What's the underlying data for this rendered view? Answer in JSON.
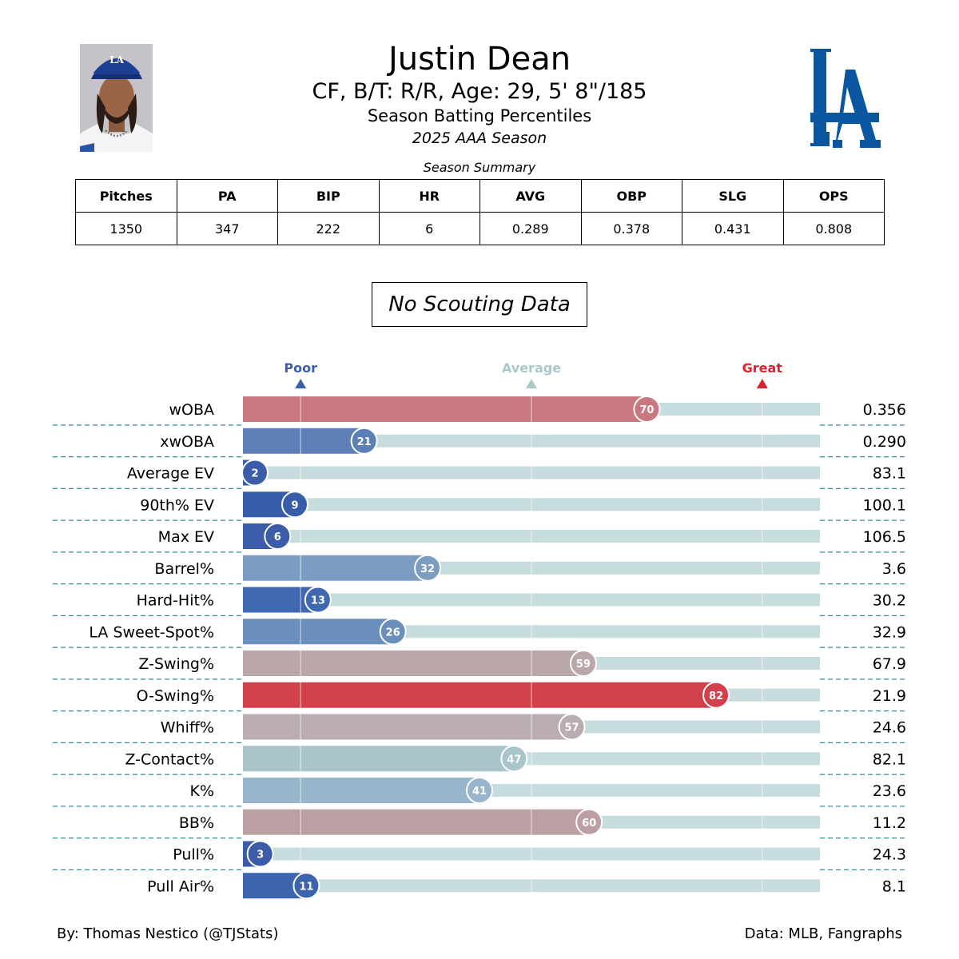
{
  "header": {
    "player_name": "Justin Dean",
    "player_info": "CF, B/T: R/R, Age: 29, 5' 8\"/185",
    "report_title": "Season Batting Percentiles",
    "season": "2025 AAA Season",
    "logo_text": "LA",
    "cap_logo_text": "LA"
  },
  "summary": {
    "caption": "Season Summary",
    "headers": [
      "Pitches",
      "PA",
      "BIP",
      "HR",
      "AVG",
      "OBP",
      "SLG",
      "OPS"
    ],
    "values": [
      "1350",
      "347",
      "222",
      "6",
      "0.289",
      "0.378",
      "0.431",
      "0.808"
    ]
  },
  "scouting": {
    "label": "No Scouting Data"
  },
  "chart_data": {
    "type": "bar",
    "title": "Season Batting Percentiles",
    "orientation": "horizontal",
    "xlim": [
      0,
      100
    ],
    "markers": [
      {
        "label": "Poor",
        "value": 10,
        "color": "#3a5fa8"
      },
      {
        "label": "Average",
        "value": 50,
        "color": "#a9c8cc"
      },
      {
        "label": "Great",
        "value": 90,
        "color": "#d6232d"
      }
    ],
    "categories": [
      "wOBA",
      "xwOBA",
      "Average EV",
      "90th% EV",
      "Max EV",
      "Barrel%",
      "Hard-Hit%",
      "LA Sweet-Spot%",
      "Z-Swing%",
      "O-Swing%",
      "Whiff%",
      "Z-Contact%",
      "K%",
      "BB%",
      "Pull%",
      "Pull Air%"
    ],
    "percentiles": [
      70,
      21,
      2,
      9,
      6,
      32,
      13,
      26,
      59,
      82,
      57,
      47,
      41,
      60,
      3,
      11
    ],
    "stat_values": [
      "0.356",
      "0.290",
      "83.1",
      "100.1",
      "106.5",
      "3.6",
      "30.2",
      "32.9",
      "67.9",
      "21.9",
      "24.6",
      "82.1",
      "23.6",
      "11.2",
      "24.3",
      "8.1"
    ],
    "colors": [
      "#c8787e",
      "#5b7fb6",
      "#3a5ca9",
      "#375da9",
      "#3a5ca9",
      "#7b9dc2",
      "#3f68b0",
      "#6b8fbc",
      "#b9a7aa",
      "#d2414b",
      "#b9adb1",
      "#a9c5cc",
      "#97b6cb",
      "#bc9fa3",
      "#3a5ca9",
      "#3d65ae"
    ],
    "track_color": "#c7dcdd",
    "divider_color": "#3b8a94"
  },
  "footer": {
    "credit": "By: Thomas Nestico (@TJStats)",
    "source": "Data: MLB, Fangraphs"
  }
}
